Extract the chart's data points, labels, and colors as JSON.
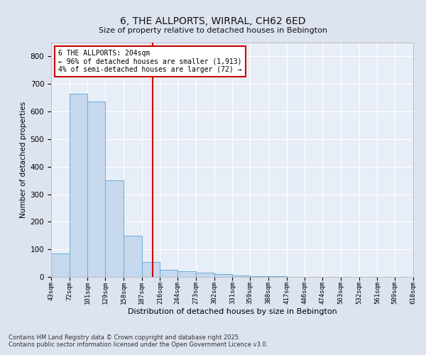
{
  "title": "6, THE ALLPORTS, WIRRAL, CH62 6ED",
  "subtitle": "Size of property relative to detached houses in Bebington",
  "xlabel": "Distribution of detached houses by size in Bebington",
  "ylabel": "Number of detached properties",
  "bar_color": "#c5d8ee",
  "bar_edge_color": "#6baed6",
  "background_color": "#e8eef8",
  "grid_color": "#ffffff",
  "bin_edges": [
    43,
    72,
    101,
    129,
    158,
    187,
    216,
    244,
    273,
    302,
    331,
    359,
    388,
    417,
    446,
    474,
    503,
    532,
    561,
    589,
    618
  ],
  "bar_heights": [
    85,
    665,
    635,
    350,
    150,
    55,
    25,
    20,
    15,
    10,
    5,
    3,
    2,
    1,
    1,
    0,
    0,
    0,
    0,
    0
  ],
  "vline_x": 204,
  "vline_color": "#cc0000",
  "annotation_text": "6 THE ALLPORTS: 204sqm\n← 96% of detached houses are smaller (1,913)\n4% of semi-detached houses are larger (72) →",
  "annotation_box_color": "#cc0000",
  "annotation_text_color": "#000000",
  "ylim": [
    0,
    850
  ],
  "yticks": [
    0,
    100,
    200,
    300,
    400,
    500,
    600,
    700,
    800
  ],
  "footnote1": "Contains HM Land Registry data © Crown copyright and database right 2025.",
  "footnote2": "Contains public sector information licensed under the Open Government Licence v3.0."
}
